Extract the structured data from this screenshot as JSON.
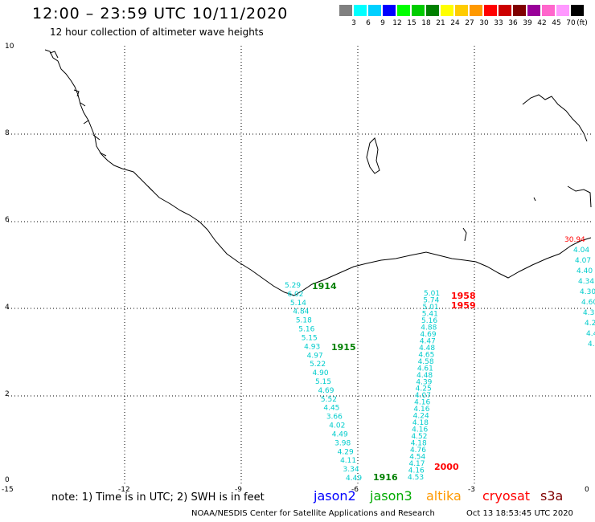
{
  "header": {
    "title": "12:00 – 23:59 UTC 10/11/2020",
    "subtitle": "12 hour collection of altimeter wave heights"
  },
  "legend": {
    "unit": "(ft)",
    "colors": [
      "#808080",
      "#00ffff",
      "#00d0ff",
      "#0000ff",
      "#00ff00",
      "#00cc00",
      "#008000",
      "#ffff00",
      "#ffcc00",
      "#ff9900",
      "#ff0000",
      "#cc0000",
      "#800000",
      "#990099",
      "#ff66cc",
      "#ff99ff",
      "#000000"
    ],
    "labels": [
      "3",
      "6",
      "9",
      "12",
      "15",
      "18",
      "21",
      "24",
      "27",
      "30",
      "33",
      "36",
      "39",
      "42",
      "45",
      "70"
    ]
  },
  "axes": {
    "x_ticks": [
      "-15",
      "-12",
      "-9",
      "-6",
      "-3",
      "0"
    ],
    "y_ticks": [
      "0",
      "2",
      "4",
      "6",
      "8",
      "10"
    ]
  },
  "passes": [
    {
      "label": "1914",
      "color": "#008000"
    },
    {
      "label": "1915",
      "color": "#008000"
    },
    {
      "label": "1916",
      "color": "#008000"
    },
    {
      "label": "1958",
      "color": "#ff0000"
    },
    {
      "label": "1959",
      "color": "#ff0000"
    },
    {
      "label": "2000",
      "color": "#ff0000"
    }
  ],
  "track_a": [
    "5.29",
    "6.02",
    "5.14",
    "4.84",
    "5.18",
    "5.16",
    "5.15",
    "4.93",
    "4.97",
    "5.22",
    "4.90",
    "5.15",
    "4.69",
    "5.52",
    "4.45",
    "3.66",
    "4.02",
    "4.49",
    "3.98",
    "4.29",
    "4.11",
    "3.34",
    "4.49"
  ],
  "track_b": [
    "5.01",
    "5.74",
    "5.01",
    "5.41",
    "5.16",
    "4.88",
    "4.69",
    "4.47",
    "4.48",
    "4.65",
    "4.58",
    "4.61",
    "4.48",
    "4.39",
    "4.25",
    "4.07",
    "4.16",
    "4.16",
    "4.24",
    "4.18",
    "4.16",
    "4.52",
    "4.18",
    "4.76",
    "4.54",
    "4.17",
    "4.16",
    "4.53"
  ],
  "track_c": [
    "30.94",
    "4.04",
    "4.07",
    "4.40",
    "4.34",
    "4.30",
    "4.60",
    "4.3",
    "4.2",
    "4.4",
    "4.1"
  ],
  "footer": {
    "note": "note:  1) Time is in UTC;  2) SWH is in feet",
    "satellites": [
      {
        "name": "jason2",
        "color": "#0000ff"
      },
      {
        "name": "jason3",
        "color": "#00aa00"
      },
      {
        "name": "altika",
        "color": "#ff9900"
      },
      {
        "name": "cryosat",
        "color": "#ff0000"
      },
      {
        "name": "s3a",
        "color": "#800000"
      }
    ],
    "credit": "NOAA/NESDIS Center for Satellite Applications and Research",
    "timestamp": "Oct 13 18:53:45 UTC 2020"
  }
}
